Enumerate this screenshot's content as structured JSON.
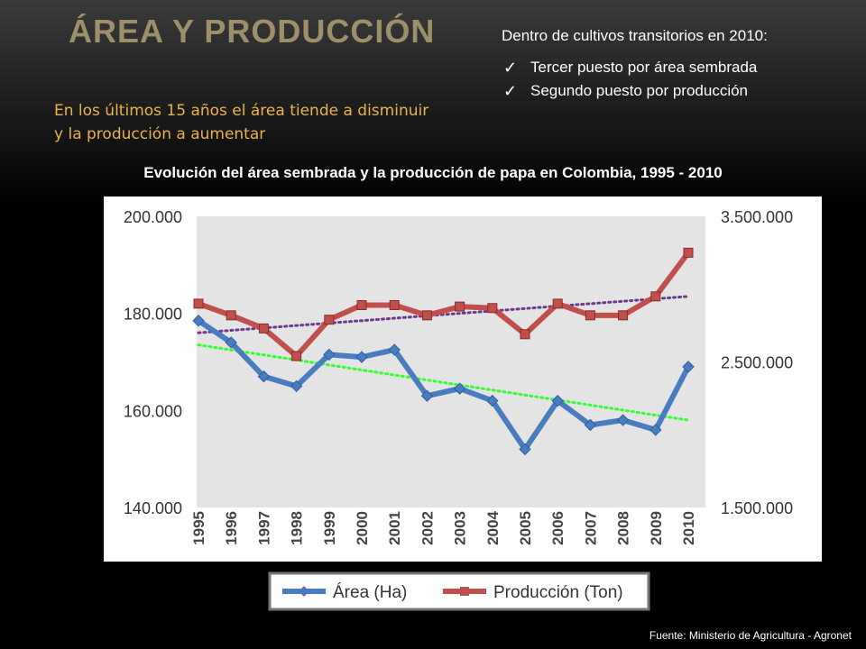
{
  "slide": {
    "title": "Área y producción",
    "trend_note": "En los últimos 15 años el área tiende a disminuir y la producción a aumentar",
    "stats_heading": "Dentro de cultivos transitorios en 2010:",
    "stats_items": [
      "Tercer puesto por área sembrada",
      "Segundo puesto por producción"
    ],
    "source": "Fuente: Ministerio de Agricultura - Agronet"
  },
  "colors": {
    "title": "#9c8f6a",
    "note": "#e8b34a",
    "area_series": "#4a7cc0",
    "production_series": "#c0504d",
    "area_trend": "#33ff33",
    "production_trend": "#6b3a8c",
    "plot_bg": "#e4e4e4"
  },
  "icons": {
    "bullet": "check-icon"
  },
  "chart_data": {
    "type": "line",
    "title": "Evolución del área sembrada y la producción de papa en Colombia, 1995 - 2010",
    "categories": [
      "1995",
      "1996",
      "1997",
      "1998",
      "1999",
      "2000",
      "2001",
      "2002",
      "2003",
      "2004",
      "2005",
      "2006",
      "2007",
      "2008",
      "2009",
      "2010"
    ],
    "ylim_left": [
      140000,
      200000
    ],
    "ylim_right": [
      1500000,
      3500000
    ],
    "yticks_left": [
      "140.000",
      "160.000",
      "180.000",
      "200.000"
    ],
    "yticks_right": [
      "1.500.000",
      "2.500.000",
      "3.500.000"
    ],
    "grid": false,
    "legend_position": "bottom",
    "series": [
      {
        "name": "Área (Ha)",
        "axis": "left",
        "values": [
          178500,
          174000,
          167000,
          165000,
          171500,
          171000,
          172500,
          163000,
          164500,
          162000,
          152000,
          162000,
          157000,
          158000,
          156000,
          169000
        ]
      },
      {
        "name": "Producción (Ton)",
        "axis": "right",
        "values": [
          2900000,
          2820000,
          2730000,
          2540000,
          2790000,
          2890000,
          2890000,
          2820000,
          2880000,
          2870000,
          2690000,
          2900000,
          2820000,
          2820000,
          2950000,
          3250000
        ]
      }
    ],
    "trendlines": [
      {
        "series": "Área (Ha)",
        "style": "dotted",
        "start": 173500,
        "end": 158000
      },
      {
        "series": "Producción (Ton)",
        "style": "dotted",
        "start": 2700000,
        "end": 2950000
      }
    ]
  }
}
